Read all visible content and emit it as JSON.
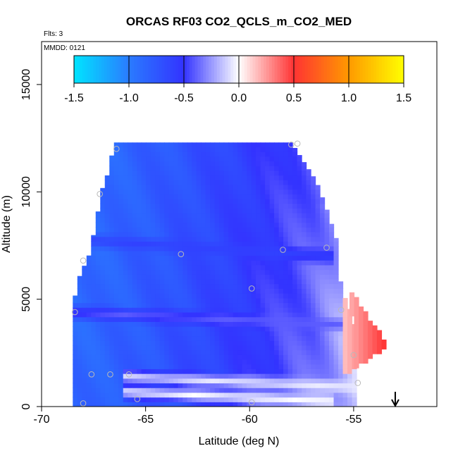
{
  "chart_data": {
    "type": "heatmap",
    "title": "ORCAS RF03 CO2_QCLS_m_CO2_MED",
    "note_flights": "Flts: 3",
    "note_date": "MMDD: 0121",
    "xlabel": "Latitude (deg N)",
    "ylabel": "Altitude (m)",
    "xlim": [
      -70,
      -51
    ],
    "ylim": [
      0,
      17000
    ],
    "x_ticks": [
      -70,
      -65,
      -60,
      -55
    ],
    "x_tick_labels": [
      "-70",
      "-65",
      "-60",
      "-55"
    ],
    "y_ticks": [
      0,
      5000,
      10000,
      15000
    ],
    "y_tick_labels": [
      "0",
      "5000",
      "10000",
      "15000"
    ],
    "colorbar": {
      "min": -1.5,
      "max": 1.5,
      "ticks": [
        -1.5,
        -1.0,
        -0.5,
        0.0,
        0.5,
        1.0,
        1.5
      ],
      "tick_labels": [
        "-1.5",
        "-1.0",
        "-0.5",
        "0.0",
        "0.5",
        "1.0",
        "1.5"
      ],
      "colors": [
        "#00e5ff",
        "#2a7bff",
        "#3333ff",
        "#ffffff",
        "#ff3333",
        "#ff9900",
        "#ffff00"
      ]
    },
    "field_envelope": [
      {
        "lat": -68.5,
        "alt_bottom": 0,
        "alt_top": 4400
      },
      {
        "lat": -68.3,
        "alt_bottom": 0,
        "alt_top": 5800
      },
      {
        "lat": -67.7,
        "alt_bottom": 0,
        "alt_top": 7100
      },
      {
        "lat": -67.4,
        "alt_bottom": 0,
        "alt_top": 8500
      },
      {
        "lat": -67.1,
        "alt_bottom": 0,
        "alt_top": 10100
      },
      {
        "lat": -66.8,
        "alt_bottom": 0,
        "alt_top": 10900
      },
      {
        "lat": -66.5,
        "alt_bottom": 0,
        "alt_top": 12300
      },
      {
        "lat": -58.0,
        "alt_bottom": 0,
        "alt_top": 12300
      },
      {
        "lat": -56.8,
        "alt_bottom": 0,
        "alt_top": 10500
      },
      {
        "lat": -56.3,
        "alt_bottom": 0,
        "alt_top": 9200
      },
      {
        "lat": -55.8,
        "alt_bottom": 0,
        "alt_top": 7700
      },
      {
        "lat": -55.6,
        "alt_bottom": 0,
        "alt_top": 5500
      },
      {
        "lat": -55.0,
        "alt_bottom": 0,
        "alt_top": 4100
      },
      {
        "lat": -54.7,
        "alt_bottom": 0,
        "alt_top": 1500
      },
      {
        "lat": -54.9,
        "alt_bottom": 0,
        "alt_top": 0
      }
    ],
    "positive_plume": [
      {
        "lat": -55.5,
        "alt": 5600
      },
      {
        "lat": -53.5,
        "alt": 2900
      },
      {
        "lat": -55.2,
        "alt": 1800
      }
    ],
    "bands": [
      {
        "lat_start": -68.5,
        "lat_end": -56.0,
        "alt_start": 7800,
        "alt_end": 7000,
        "value": -0.6
      },
      {
        "lat_start": -68.5,
        "lat_end": -55.0,
        "alt_start": 4400,
        "alt_end": 3800,
        "value": -0.4
      },
      {
        "lat_start": -66.0,
        "lat_end": -54.7,
        "alt_start": 1400,
        "alt_end": 900,
        "value": -0.05
      },
      {
        "lat_start": -66.0,
        "lat_end": -56.0,
        "alt_start": 700,
        "alt_end": 250,
        "value": 0.0
      }
    ],
    "sample_points": [
      {
        "lat": -66.4,
        "alt": 12000
      },
      {
        "lat": -58.0,
        "alt": 12200
      },
      {
        "lat": -57.7,
        "alt": 12250
      },
      {
        "lat": -67.2,
        "alt": 9900
      },
      {
        "lat": -68.0,
        "alt": 6800
      },
      {
        "lat": -63.3,
        "alt": 7100
      },
      {
        "lat": -58.4,
        "alt": 7300
      },
      {
        "lat": -56.3,
        "alt": 7400
      },
      {
        "lat": -59.9,
        "alt": 5500
      },
      {
        "lat": -68.4,
        "alt": 4400
      },
      {
        "lat": -55.6,
        "alt": 4500
      },
      {
        "lat": -55.0,
        "alt": 2400
      },
      {
        "lat": -67.6,
        "alt": 1500
      },
      {
        "lat": -66.7,
        "alt": 1500
      },
      {
        "lat": -65.8,
        "alt": 1500
      },
      {
        "lat": -54.8,
        "alt": 1100
      },
      {
        "lat": -65.4,
        "alt": 350
      },
      {
        "lat": -59.9,
        "alt": 200
      },
      {
        "lat": -68.0,
        "alt": 150
      }
    ],
    "arrow_lat": -53.0,
    "legend_position": "top-center",
    "grid": false
  }
}
